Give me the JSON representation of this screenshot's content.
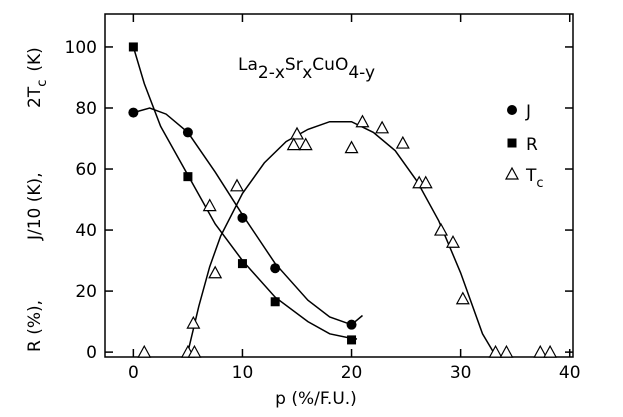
{
  "chart_data": {
    "type": "scatter",
    "xlabel": "p  (%/F.U.)",
    "ylabel_parts": [
      "R (%),",
      "J/10 (K),",
      "2T",
      "c",
      "(K)"
    ],
    "formula": [
      "La",
      "2-x",
      "Sr",
      "x",
      "CuO",
      "4-y"
    ],
    "xlim": [
      -2.6,
      40.3
    ],
    "ylim": [
      -1.6,
      110.8
    ],
    "xticks": [
      0,
      10,
      20,
      30,
      40
    ],
    "yticks": [
      0,
      20,
      40,
      60,
      80,
      100
    ],
    "series": [
      {
        "name": "J",
        "marker": "circle",
        "color": "#000000",
        "x": [
          0,
          5,
          10,
          13,
          20
        ],
        "values": [
          78.5,
          72,
          44,
          27.5,
          9
        ]
      },
      {
        "name": "R",
        "marker": "square",
        "color": "#000000",
        "x": [
          0,
          5,
          10,
          13,
          20
        ],
        "values": [
          100,
          57.5,
          29,
          16.5,
          4
        ]
      },
      {
        "name": "T",
        "subscript": "c",
        "marker": "triangle",
        "color": "#000000",
        "x": [
          1,
          5,
          5.6,
          5.5,
          7,
          7.5,
          9.5,
          15,
          14.7,
          15.8,
          20,
          21,
          22.8,
          24.7,
          26.2,
          26.8,
          28.2,
          29.3,
          30.2,
          33.2,
          34.2,
          37.3,
          38.2
        ],
        "values": [
          0,
          0,
          0,
          9.5,
          48,
          26,
          54.5,
          71.5,
          68,
          68,
          67,
          75.5,
          73.5,
          68.5,
          55.5,
          55.5,
          40,
          36,
          17.5,
          0,
          0,
          0,
          0
        ]
      }
    ],
    "fits": [
      {
        "x": [
          0,
          1.5,
          3,
          5,
          7.5,
          10,
          13,
          16,
          18,
          20,
          21
        ],
        "y": [
          78.5,
          80,
          78,
          72,
          59,
          45,
          29,
          17,
          11.5,
          9,
          12
        ]
      },
      {
        "x": [
          0,
          1,
          2.5,
          5,
          7.5,
          10,
          13,
          16,
          18,
          20,
          20.5
        ],
        "y": [
          100,
          88,
          74,
          58,
          42,
          30,
          18,
          10,
          6,
          4.5,
          4.3
        ]
      },
      {
        "x": [
          5,
          6,
          7,
          8,
          10,
          12,
          14,
          16,
          18,
          20,
          22,
          24,
          26,
          28,
          30,
          32,
          33
        ],
        "y": [
          0,
          15,
          28,
          38,
          52,
          62,
          69,
          73,
          75.5,
          75.5,
          72,
          66,
          56,
          43,
          26,
          6,
          0
        ]
      }
    ]
  }
}
